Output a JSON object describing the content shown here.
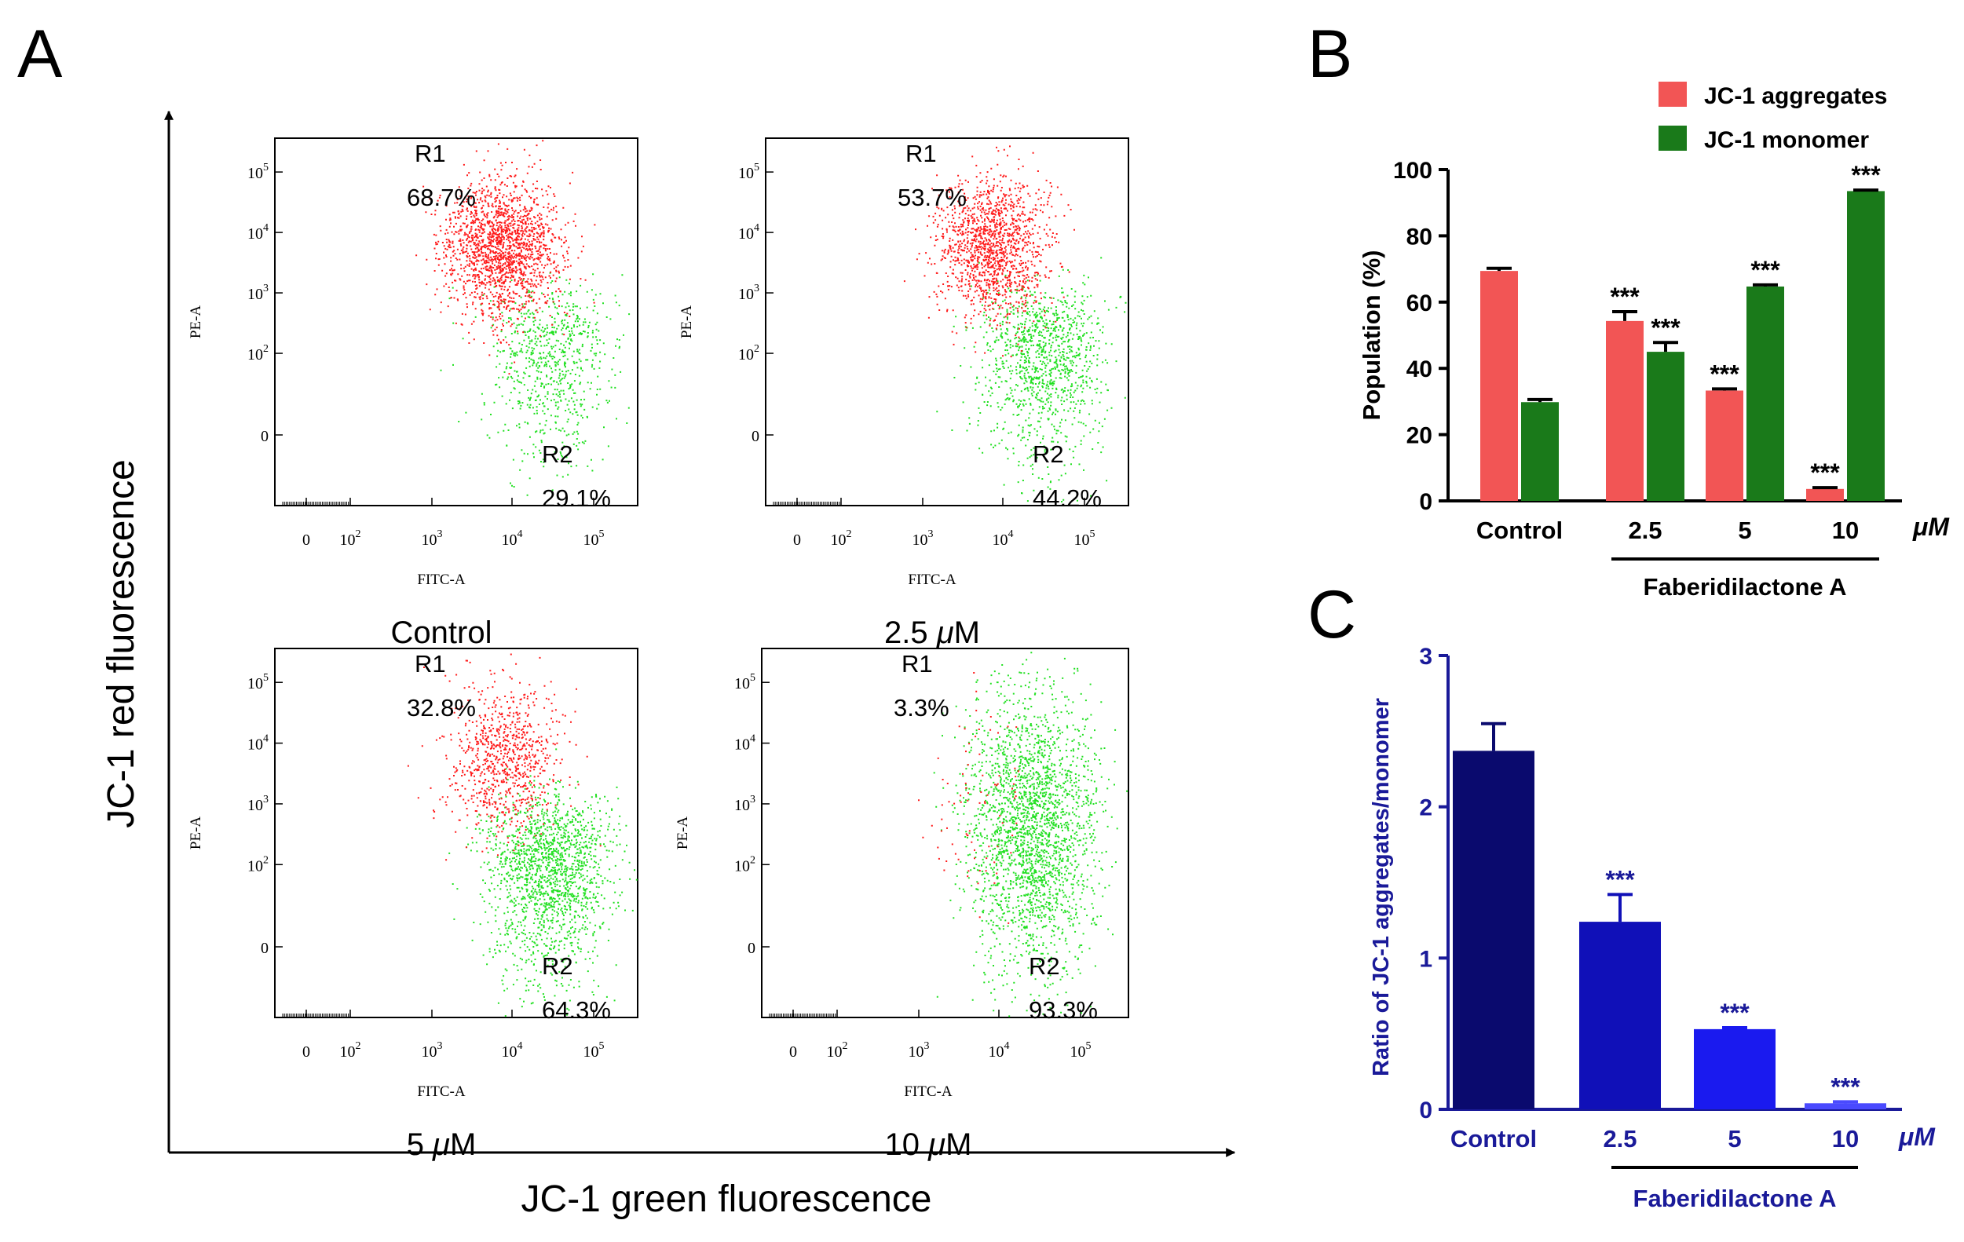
{
  "panel_letters": {
    "a": "A",
    "b": "B",
    "c": "C"
  },
  "colors": {
    "red_pop": "#ff1a1a",
    "green_pop": "#22e022",
    "bar_red": "#f25555",
    "bar_green": "#1a7a1a",
    "navy_text": "#1a1a99",
    "c_bars": [
      "#0a0a6e",
      "#1010b8",
      "#1a1aef",
      "#4a4aff"
    ]
  },
  "panel_a": {
    "y_axis_label": "JC-1 red fluorescence",
    "x_axis_label": "JC-1 green fluorescence",
    "plot_ylabel": "PE-A",
    "plot_xlabel": "FITC-A",
    "x_ticks": [
      {
        "base": "0",
        "exp": ""
      },
      {
        "base": "10",
        "exp": "2"
      },
      {
        "base": "10",
        "exp": "3"
      },
      {
        "base": "10",
        "exp": "4"
      },
      {
        "base": "10",
        "exp": "5"
      }
    ],
    "y_ticks": [
      {
        "base": "0",
        "exp": ""
      },
      {
        "base": "10",
        "exp": "2"
      },
      {
        "base": "10",
        "exp": "3"
      },
      {
        "base": "10",
        "exp": "4"
      },
      {
        "base": "10",
        "exp": "5"
      }
    ],
    "plots": [
      {
        "caption_num": "",
        "caption_unit": "Control",
        "r1_label": "R1",
        "r1_value": "68.7%",
        "r2_label": "R2",
        "r2_value": "29.1%",
        "red_fraction": 0.687,
        "green_fraction": 0.291
      },
      {
        "caption_num": "2.5 ",
        "caption_unit": "μM",
        "r1_label": "R1",
        "r1_value": "53.7%",
        "r2_label": "R2",
        "r2_value": "44.2%",
        "red_fraction": 0.537,
        "green_fraction": 0.442
      },
      {
        "caption_num": "5 ",
        "caption_unit": "μM",
        "r1_label": "R1",
        "r1_value": "32.8%",
        "r2_label": "R2",
        "r2_value": "64.3%",
        "red_fraction": 0.328,
        "green_fraction": 0.643
      },
      {
        "caption_num": "10 ",
        "caption_unit": "μM",
        "r1_label": "R1",
        "r1_value": "3.3%",
        "r2_label": "R2",
        "r2_value": "93.3%",
        "red_fraction": 0.033,
        "green_fraction": 0.933
      }
    ]
  },
  "chart_data": [
    {
      "type": "bar",
      "panel": "B",
      "ylabel": "Population (%)",
      "ylim": [
        0,
        100
      ],
      "yticks": [
        0,
        20,
        40,
        60,
        80,
        100
      ],
      "categories": [
        "Control",
        "2.5",
        "5",
        "10"
      ],
      "unit_label": "μM",
      "bracket_label": "Faberidilactone A",
      "series": [
        {
          "name": "JC-1 aggregates",
          "color": "#f25555",
          "values": [
            69.4,
            54.3,
            33.3,
            3.6
          ],
          "errors": [
            0.8,
            2.8,
            0.5,
            0.4
          ],
          "significance": [
            "",
            "***",
            "***",
            "***"
          ]
        },
        {
          "name": "JC-1 monomer",
          "color": "#1a7a1a",
          "values": [
            29.8,
            45.0,
            64.7,
            93.5
          ],
          "errors": [
            0.8,
            2.8,
            0.5,
            0.3
          ],
          "significance": [
            "",
            "***",
            "***",
            "***"
          ]
        }
      ],
      "legend_position": "top-right"
    },
    {
      "type": "bar",
      "panel": "C",
      "ylabel": "Ratio of JC-1 aggregates/monomer",
      "ylim": [
        0,
        3
      ],
      "yticks": [
        0,
        1,
        2,
        3
      ],
      "categories": [
        "Control",
        "2.5",
        "5",
        "10"
      ],
      "unit_label": "μM",
      "bracket_label": "Faberidilactone A",
      "values": [
        2.37,
        1.24,
        0.53,
        0.04
      ],
      "errors": [
        0.18,
        0.18,
        0.01,
        0.01
      ],
      "significance": [
        "",
        "***",
        "***",
        "***"
      ],
      "colors": [
        "#0a0a6e",
        "#1010b8",
        "#1a1aef",
        "#4a4aff"
      ]
    }
  ]
}
